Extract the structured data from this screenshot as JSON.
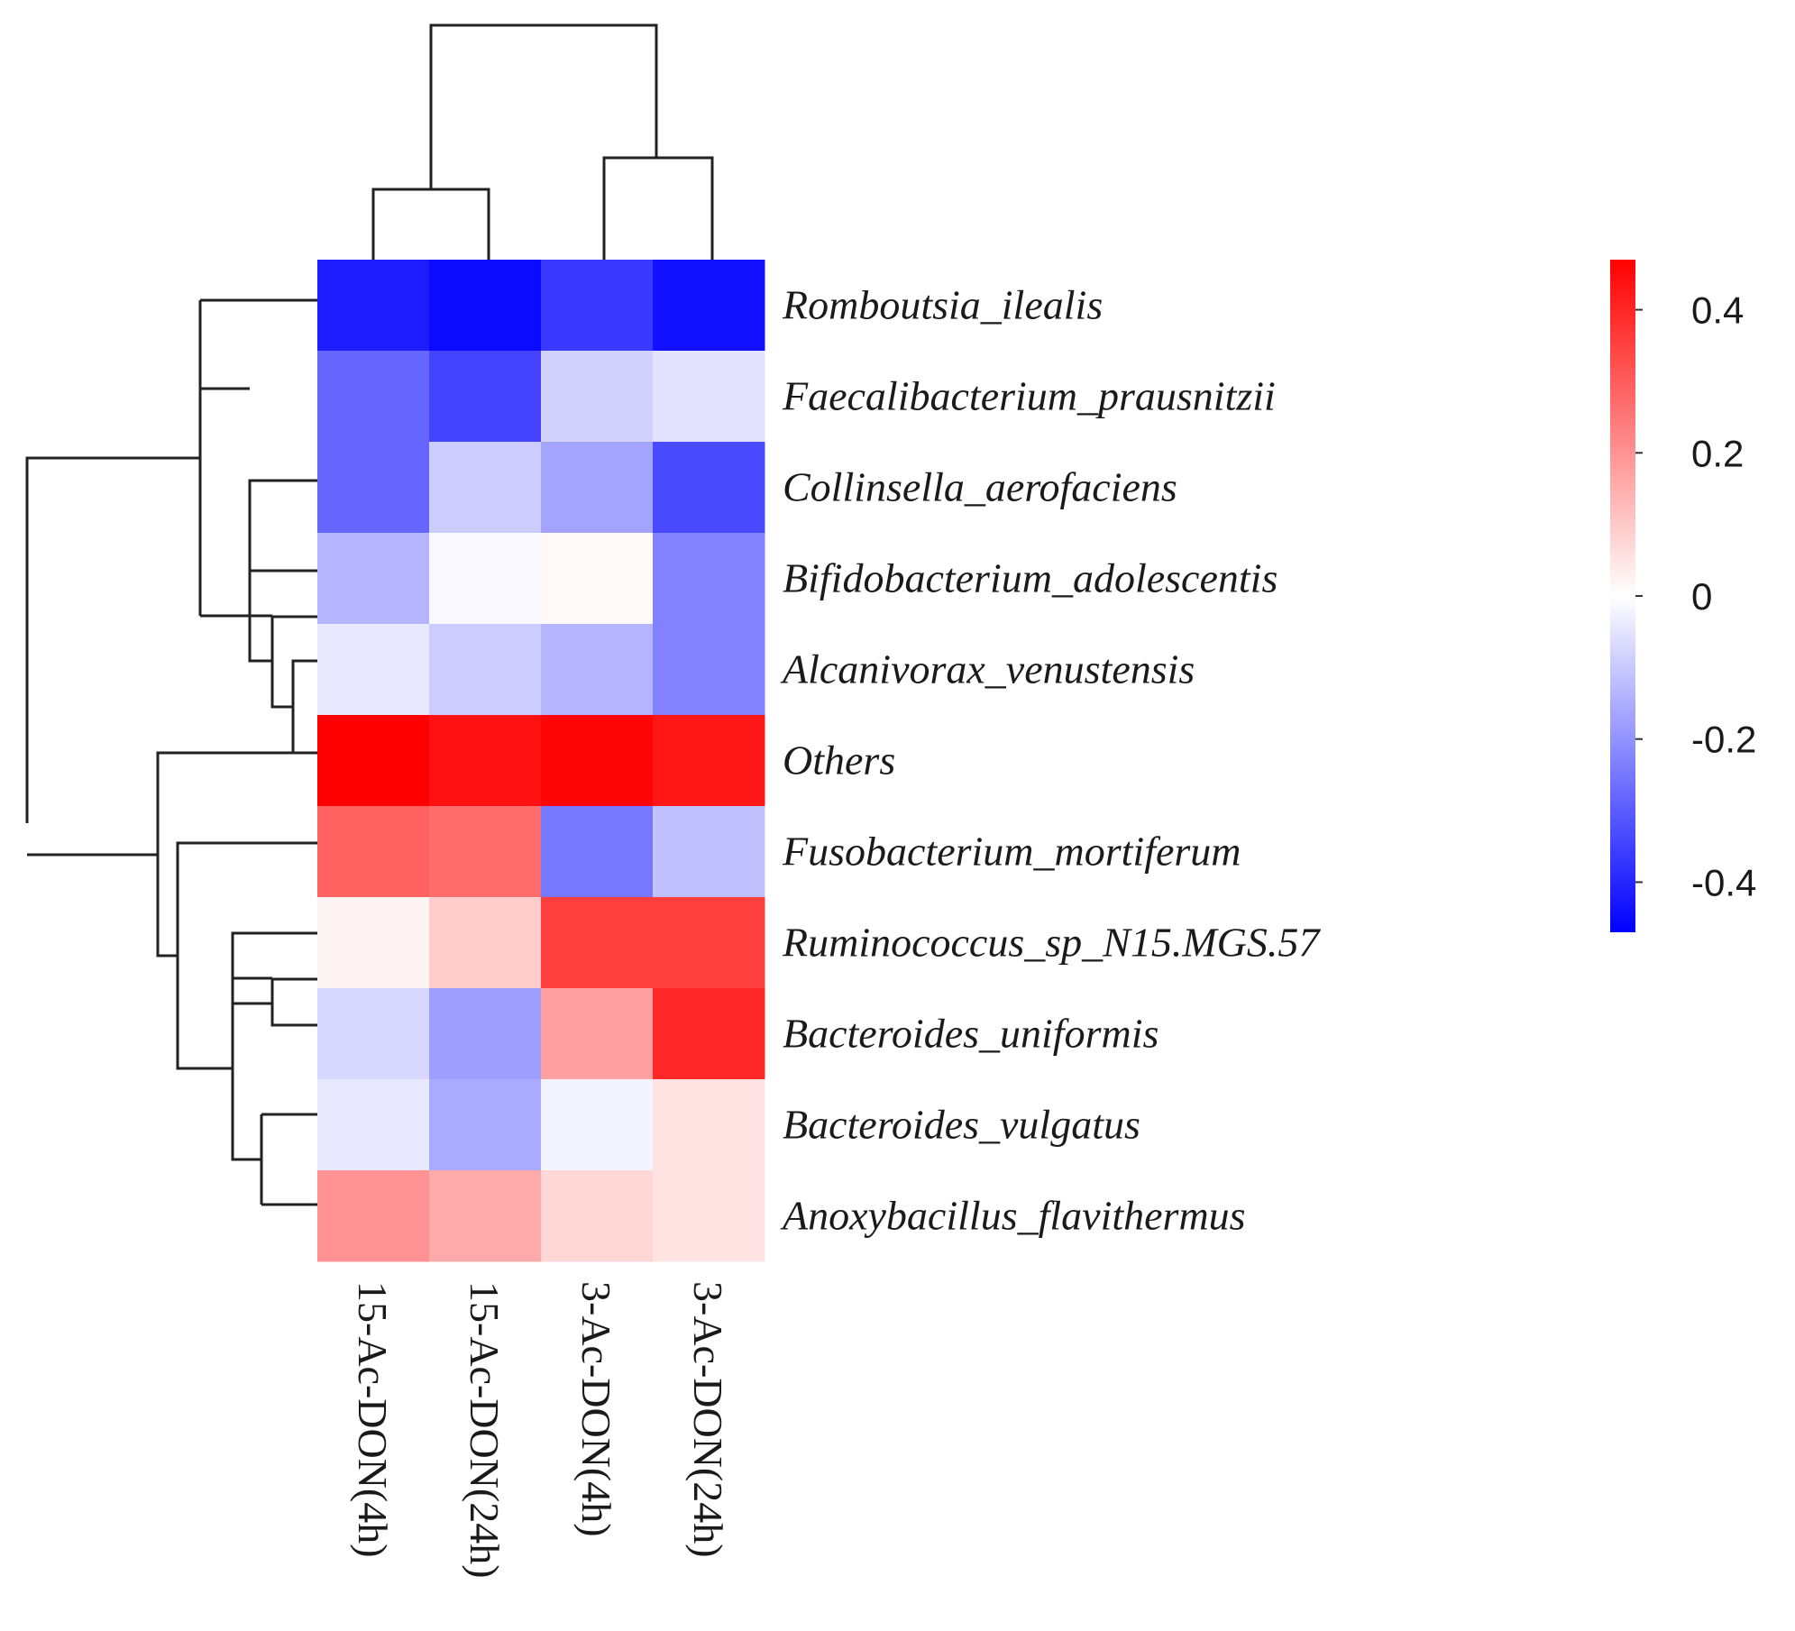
{
  "chart_data": {
    "type": "heatmap",
    "title": "",
    "rows": [
      "Romboutsia_ilealis",
      "Faecalibacterium_prausnitzii",
      "Collinsella_aerofaciens",
      "Bifidobacterium_adolescentis",
      "Alcanivorax_venustensis",
      "Others",
      "Fusobacterium_mortiferum",
      "Ruminococcus_sp_N15.MGS.57",
      "Bacteroides_uniformis",
      "Bacteroides_vulgatus",
      "Anoxybacillus_flavithermus"
    ],
    "columns": [
      "15-Ac-DON(4h)",
      "15-Ac-DON(24h)",
      "3-Ac-DON(4h)",
      "3-Ac-DON(24h)"
    ],
    "values": [
      [
        -0.4,
        -0.43,
        -0.35,
        -0.42
      ],
      [
        -0.27,
        -0.33,
        -0.08,
        -0.05
      ],
      [
        -0.27,
        -0.09,
        -0.16,
        -0.32
      ],
      [
        -0.13,
        -0.01,
        0.01,
        -0.22
      ],
      [
        -0.04,
        -0.09,
        -0.13,
        -0.22
      ],
      [
        0.47,
        0.42,
        0.44,
        0.41
      ],
      [
        0.28,
        0.26,
        -0.24,
        -0.11
      ],
      [
        0.02,
        0.09,
        0.34,
        0.34
      ],
      [
        -0.07,
        -0.17,
        0.17,
        0.38
      ],
      [
        -0.04,
        -0.15,
        -0.02,
        0.05
      ],
      [
        0.19,
        0.15,
        0.07,
        0.05
      ]
    ],
    "color_scale": {
      "min": -0.45,
      "max": 0.45,
      "low": "#0000ff",
      "mid": "#ffffff",
      "high": "#ff0000"
    },
    "legend": {
      "ticks": [
        0.4,
        0.2,
        0,
        -0.2,
        -0.4
      ],
      "tick_labels": [
        "0.4",
        "0.2",
        "0",
        "-0.2",
        "-0.4"
      ],
      "placement": "right"
    },
    "dendrograms": {
      "rows": "left",
      "columns": "top"
    }
  }
}
